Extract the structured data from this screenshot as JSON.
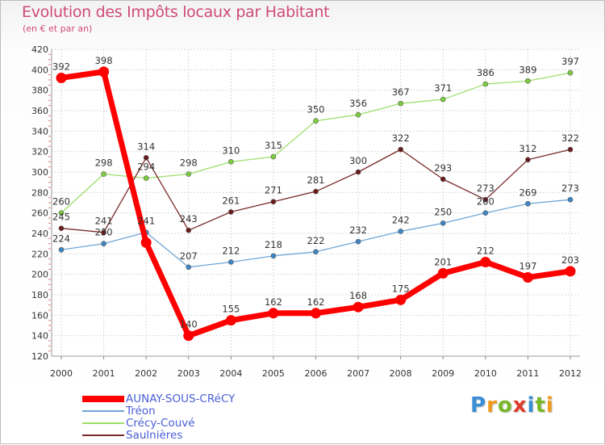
{
  "title": "Evolution des Impôts locaux par Habitant",
  "subtitle": "(en € et par an)",
  "logo_letters": [
    {
      "char": "P",
      "color": "#3a8fd6"
    },
    {
      "char": "r",
      "color": "#f29a1c"
    },
    {
      "char": "o",
      "color": "#7ab82b"
    },
    {
      "char": "x",
      "color": "#e03a2a"
    },
    {
      "char": "i",
      "color": "#3a8fd6"
    },
    {
      "char": "t",
      "color": "#7ab82b"
    },
    {
      "char": "i",
      "color": "#f29a1c"
    }
  ],
  "chart_data": {
    "type": "line",
    "title": "Evolution des Impôts locaux par Habitant",
    "ylabel": "(en € et par an)",
    "xlabel": "",
    "x": [
      "2000",
      "2001",
      "2002",
      "2003",
      "2004",
      "2005",
      "2006",
      "2007",
      "2008",
      "2009",
      "2010",
      "2011",
      "2012"
    ],
    "ylim": [
      120,
      420
    ],
    "yticks": [
      "120",
      "140",
      "160",
      "180",
      "200",
      "220",
      "240",
      "260",
      "280",
      "300",
      "320",
      "340",
      "360",
      "380",
      "400",
      "420"
    ],
    "grid": true,
    "legend": "bottom-left",
    "series": [
      {
        "name": "AUNAY-SOUS-CRéCY",
        "color": "#ff0000",
        "marker_fill": "#ff0000",
        "values": [
          392,
          398,
          231,
          140,
          155,
          162,
          162,
          168,
          175,
          201,
          212,
          197,
          203
        ],
        "labels": [
          "392",
          "398",
          "",
          "140",
          "155",
          "162",
          "162",
          "168",
          "175",
          "201",
          "212",
          "197",
          "203"
        ]
      },
      {
        "name": "Tréon",
        "color": "#6fa6d6",
        "marker_fill": "#3d86c6",
        "values": [
          224,
          230,
          241,
          207,
          212,
          218,
          222,
          232,
          242,
          250,
          260,
          269,
          273
        ],
        "labels": [
          "224",
          "230",
          "241",
          "207",
          "212",
          "218",
          "222",
          "232",
          "242",
          "250",
          "260",
          "269",
          "273"
        ]
      },
      {
        "name": "Crécy-Couvé",
        "color": "#9ddf6a",
        "marker_fill": "#7ccf3c",
        "values": [
          260,
          298,
          294,
          298,
          310,
          315,
          350,
          356,
          367,
          371,
          386,
          389,
          397
        ],
        "labels": [
          "260",
          "298",
          "294",
          "298",
          "310",
          "315",
          "350",
          "356",
          "367",
          "371",
          "386",
          "389",
          "397"
        ]
      },
      {
        "name": "Saulnières",
        "color": "#7a2a2a",
        "marker_fill": "#6a1a1a",
        "values": [
          245,
          241,
          314,
          243,
          261,
          271,
          281,
          300,
          322,
          293,
          273,
          312,
          322
        ],
        "labels": [
          "245",
          "241",
          "314",
          "243",
          "261",
          "271",
          "281",
          "300",
          "322",
          "293",
          "273",
          "312",
          "322"
        ]
      }
    ]
  }
}
